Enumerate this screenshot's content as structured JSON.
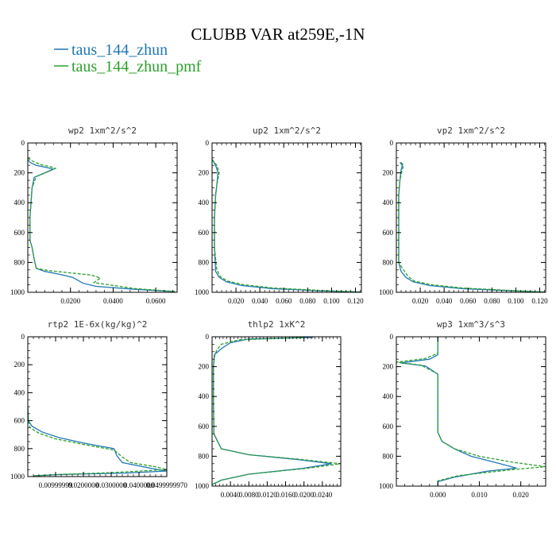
{
  "title": "CLUBB VAR at259E,-1N",
  "legend": [
    {
      "label": "taus_144_zhun",
      "color": "#1f77b4",
      "dash": false
    },
    {
      "label": "taus_144_zhun_pmf",
      "color": "#2ca02c",
      "dash": true
    }
  ],
  "chart_data": [
    {
      "type": "line",
      "title": "wp2  1xm^2/s^2",
      "xlim": [
        0,
        0.07
      ],
      "ylim": [
        1000,
        0
      ],
      "yticks": [
        0,
        200,
        400,
        600,
        800,
        1000
      ],
      "xticks": [
        0.02,
        0.04,
        0.06
      ],
      "xticklabels": [
        "0.0200",
        "0.0400",
        "0.0600"
      ],
      "series": [
        {
          "name": "taus_144_zhun",
          "x": [
            0.0,
            0.001,
            0.004,
            0.009,
            0.012,
            0.008,
            0.003,
            0.002,
            0.001,
            0.001,
            0.002,
            0.003,
            0.004,
            0.008,
            0.015,
            0.021,
            0.026,
            0.032,
            0.05,
            0.069
          ],
          "y": [
            110,
            130,
            150,
            165,
            175,
            200,
            230,
            300,
            500,
            650,
            700,
            780,
            840,
            860,
            880,
            900,
            940,
            960,
            980,
            995
          ]
        },
        {
          "name": "taus_144_zhun_pmf",
          "x": [
            0.0,
            0.002,
            0.006,
            0.011,
            0.013,
            0.009,
            0.004,
            0.002,
            0.001,
            0.001,
            0.002,
            0.003,
            0.004,
            0.01,
            0.02,
            0.03,
            0.034,
            0.031,
            0.05,
            0.07
          ],
          "y": [
            100,
            120,
            145,
            160,
            170,
            195,
            225,
            300,
            500,
            650,
            700,
            780,
            840,
            855,
            870,
            885,
            905,
            935,
            975,
            995
          ]
        }
      ]
    },
    {
      "type": "line",
      "title": "up2  1xm^2/s^2",
      "xlim": [
        0,
        0.125
      ],
      "ylim": [
        1000,
        0
      ],
      "yticks": [
        0,
        200,
        400,
        600,
        800,
        1000
      ],
      "xticks": [
        0.02,
        0.04,
        0.06,
        0.08,
        0.1,
        0.12
      ],
      "xticklabels": [
        "0.020",
        "0.040",
        "0.060",
        "0.080",
        "0.100",
        "0.120"
      ],
      "series": [
        {
          "name": "taus_144_zhun",
          "x": [
            0.0,
            0.003,
            0.005,
            0.004,
            0.003,
            0.002,
            0.002,
            0.003,
            0.006,
            0.012,
            0.025,
            0.05,
            0.09,
            0.124
          ],
          "y": [
            110,
            150,
            200,
            280,
            350,
            500,
            700,
            860,
            900,
            930,
            955,
            975,
            990,
            998
          ]
        },
        {
          "name": "taus_144_zhun_pmf",
          "x": [
            0.0,
            0.004,
            0.006,
            0.004,
            0.003,
            0.002,
            0.002,
            0.004,
            0.007,
            0.013,
            0.027,
            0.052,
            0.092,
            0.124
          ],
          "y": [
            110,
            150,
            200,
            280,
            350,
            500,
            700,
            850,
            895,
            925,
            950,
            972,
            988,
            998
          ]
        }
      ]
    },
    {
      "type": "line",
      "title": "vp2  1xm^2/s^2",
      "xlim": [
        0,
        0.125
      ],
      "ylim": [
        1000,
        0
      ],
      "yticks": [
        0,
        200,
        400,
        600,
        800,
        1000
      ],
      "xticks": [
        0.02,
        0.04,
        0.06,
        0.08,
        0.1,
        0.12
      ],
      "xticklabels": [
        "0.020",
        "0.040",
        "0.060",
        "0.080",
        "0.100",
        "0.120"
      ],
      "series": [
        {
          "name": "taus_144_zhun",
          "x": [
            0.003,
            0.005,
            0.004,
            0.003,
            0.002,
            0.002,
            0.002,
            0.004,
            0.008,
            0.014,
            0.028,
            0.055,
            0.095,
            0.124
          ],
          "y": [
            130,
            150,
            180,
            250,
            350,
            500,
            800,
            860,
            900,
            930,
            955,
            975,
            990,
            998
          ]
        },
        {
          "name": "taus_144_zhun_pmf",
          "x": [
            0.004,
            0.006,
            0.005,
            0.003,
            0.002,
            0.002,
            0.002,
            0.006,
            0.01,
            0.015,
            0.03,
            0.056,
            0.096,
            0.124
          ],
          "y": [
            130,
            150,
            180,
            250,
            350,
            500,
            800,
            850,
            895,
            925,
            950,
            972,
            988,
            998
          ]
        }
      ]
    },
    {
      "type": "line",
      "title": "rtp2  1E-6x(kg/kg)^2",
      "xlim": [
        0,
        0.05
      ],
      "ylim": [
        1000,
        0
      ],
      "yticks": [
        0,
        200,
        400,
        600,
        800,
        1000
      ],
      "xticks": [
        0.01,
        0.02,
        0.03,
        0.04,
        0.05
      ],
      "xticklabels": [
        "0.00999999",
        "0.0200000",
        "0.0300000",
        "0.0400000",
        "0.0499999970"
      ],
      "series": [
        {
          "name": "taus_144_zhun",
          "x": [
            0.0,
            0.0002,
            0.0015,
            0.005,
            0.011,
            0.02,
            0.031,
            0.032,
            0.034,
            0.044,
            0.05,
            0.035,
            0.012,
            0.002
          ],
          "y": [
            500,
            600,
            640,
            680,
            720,
            760,
            800,
            850,
            900,
            940,
            960,
            975,
            985,
            995
          ]
        },
        {
          "name": "taus_144_zhun_pmf",
          "x": [
            0.0,
            0.0002,
            0.0008,
            0.004,
            0.01,
            0.02,
            0.031,
            0.034,
            0.037,
            0.046,
            0.05,
            0.03,
            0.01,
            0.002
          ],
          "y": [
            500,
            600,
            650,
            690,
            730,
            770,
            810,
            860,
            900,
            930,
            950,
            972,
            985,
            995
          ]
        }
      ]
    },
    {
      "type": "line",
      "title": "thlp2  1xK^2",
      "xlim": [
        0,
        0.028
      ],
      "ylim": [
        1000,
        0
      ],
      "yticks": [
        0,
        200,
        400,
        600,
        800,
        1000
      ],
      "xticks": [
        0.004,
        0.008,
        0.012,
        0.016,
        0.02,
        0.024
      ],
      "xticklabels": [
        "0.0040",
        "0.0080",
        "0.0120",
        "0.0160",
        "0.0200",
        "0.0240"
      ],
      "series": [
        {
          "name": "taus_144_zhun",
          "x": [
            0.022,
            0.008,
            0.004,
            0.002,
            0.0005,
            0.0003,
            0.0003,
            0.0004,
            0.002,
            0.008,
            0.018,
            0.026,
            0.02,
            0.008,
            0.002,
            0.0
          ],
          "y": [
            5,
            15,
            40,
            80,
            120,
            200,
            400,
            650,
            750,
            790,
            820,
            850,
            880,
            920,
            960,
            990
          ]
        },
        {
          "name": "taus_144_zhun_pmf",
          "x": [
            0.02,
            0.006,
            0.002,
            0.001,
            0.0006,
            0.0003,
            0.0003,
            0.0004,
            0.002,
            0.008,
            0.019,
            0.028,
            0.021,
            0.008,
            0.002,
            0.0
          ],
          "y": [
            5,
            20,
            50,
            90,
            120,
            200,
            400,
            650,
            750,
            790,
            820,
            850,
            880,
            920,
            960,
            990
          ]
        }
      ]
    },
    {
      "type": "line",
      "title": "wp3  1xm^3/s^3",
      "xlim": [
        -0.01,
        0.026
      ],
      "ylim": [
        1000,
        0
      ],
      "yticks": [
        0,
        200,
        400,
        600,
        800,
        1000
      ],
      "xticks": [
        0.0,
        0.01,
        0.02
      ],
      "xticklabels": [
        "0.000",
        "0.010",
        "0.020"
      ],
      "series": [
        {
          "name": "taus_144_zhun",
          "x": [
            0.0,
            0.0,
            -0.002,
            -0.009,
            -0.003,
            0.0,
            0.0,
            0.0,
            0.0,
            0.001,
            0.004,
            0.008,
            0.015,
            0.019,
            0.012,
            0.004,
            0.0,
            0.0
          ],
          "y": [
            0,
            120,
            150,
            175,
            195,
            250,
            300,
            500,
            640,
            700,
            750,
            800,
            850,
            880,
            900,
            940,
            970,
            995
          ]
        },
        {
          "name": "taus_144_zhun_pmf",
          "x": [
            0.0,
            0.0,
            -0.003,
            -0.01,
            -0.004,
            0.0,
            0.0,
            0.0,
            0.0,
            0.001,
            0.004,
            0.01,
            0.018,
            0.026,
            0.018,
            0.005,
            0.0,
            0.0
          ],
          "y": [
            0,
            110,
            145,
            170,
            190,
            250,
            300,
            500,
            640,
            700,
            750,
            800,
            840,
            870,
            890,
            930,
            965,
            995
          ]
        }
      ]
    }
  ]
}
